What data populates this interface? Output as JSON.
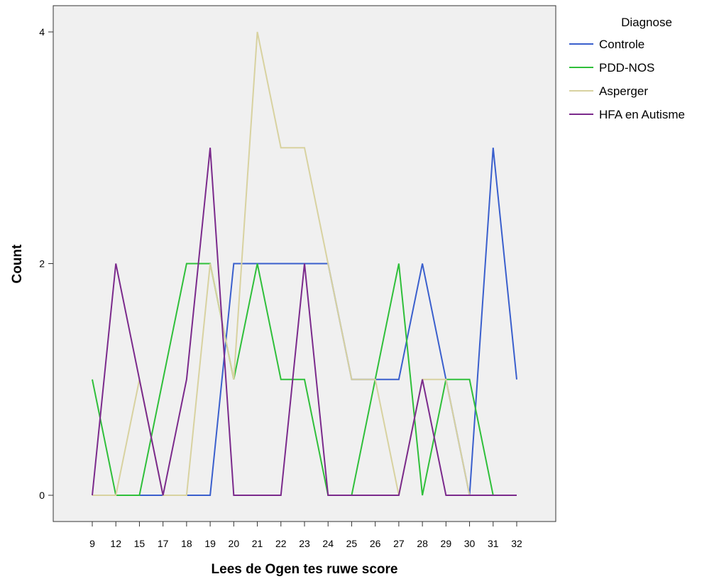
{
  "chart_data": {
    "type": "line",
    "xlabel": "Lees de Ogen tes ruwe score",
    "ylabel": "Count",
    "categories": [
      "9",
      "12",
      "15",
      "17",
      "18",
      "19",
      "20",
      "21",
      "22",
      "23",
      "24",
      "25",
      "26",
      "27",
      "28",
      "29",
      "30",
      "31",
      "32"
    ],
    "ylim": [
      0,
      4
    ],
    "yticks": [
      0,
      2,
      4
    ],
    "grid": false,
    "legend": {
      "title": "Diagnose",
      "placement": "right"
    },
    "series": [
      {
        "name": "Controle",
        "color": "#3a5fcd",
        "values": [
          0,
          0,
          0,
          0,
          0,
          0,
          2,
          2,
          2,
          2,
          2,
          1,
          1,
          1,
          2,
          1,
          0,
          3,
          1
        ]
      },
      {
        "name": "PDD-NOS",
        "color": "#2fbf3a",
        "values": [
          1,
          0,
          0,
          1,
          2,
          2,
          1,
          2,
          1,
          1,
          0,
          0,
          1,
          2,
          0,
          1,
          1,
          0,
          0
        ]
      },
      {
        "name": "Asperger",
        "color": "#d8d2a0",
        "values": [
          0,
          0,
          1,
          0,
          0,
          2,
          1,
          4,
          3,
          3,
          2,
          1,
          1,
          0,
          1,
          1,
          0,
          0,
          0
        ]
      },
      {
        "name": "HFA en Autisme",
        "color": "#7b2a8c",
        "values": [
          0,
          2,
          1,
          0,
          1,
          3,
          0,
          0,
          0,
          2,
          0,
          0,
          0,
          0,
          1,
          0,
          0,
          0,
          0
        ]
      }
    ]
  }
}
